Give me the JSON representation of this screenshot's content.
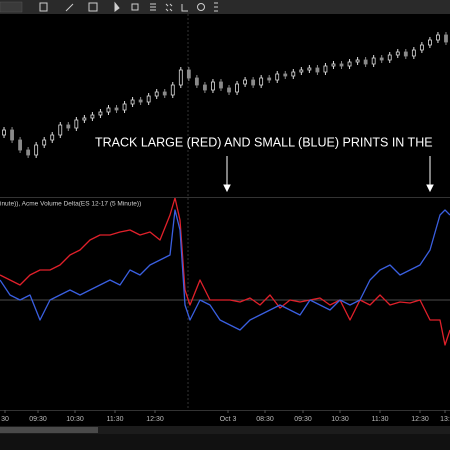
{
  "indicator_label": "inute)), Acme Volume Delta(ES 12-17 (5 Minute))",
  "time_axis": {
    "labels": [
      "30",
      "09:30",
      "10:30",
      "11:30",
      "12:30",
      "Oct 3",
      "08:30",
      "09:30",
      "10:30",
      "11:30",
      "12:30",
      "13:"
    ]
  },
  "chart_data": [
    {
      "type": "candlestick",
      "annotation": "TRACK LARGE (RED) AND SMALL (BLUE) PRINTS IN THE",
      "up_color": "#dddddd",
      "down_color": "#8a8a8a",
      "ylim": [
        0,
        200
      ],
      "open": [
        65,
        70,
        60,
        50,
        45,
        55,
        60,
        65,
        75,
        72,
        80,
        82,
        85,
        88,
        92,
        90,
        96,
        100,
        98,
        104,
        108,
        105,
        115,
        130,
        122,
        115,
        110,
        118,
        112,
        108,
        116,
        120,
        115,
        122,
        120,
        126,
        124,
        128,
        130,
        132,
        128,
        134,
        136,
        134,
        138,
        140,
        136,
        142,
        140,
        145,
        148,
        144,
        150,
        155,
        160,
        165
      ],
      "close": [
        70,
        60,
        50,
        45,
        55,
        60,
        65,
        75,
        72,
        80,
        82,
        85,
        88,
        92,
        90,
        96,
        100,
        98,
        104,
        108,
        105,
        115,
        130,
        122,
        115,
        110,
        118,
        112,
        108,
        116,
        120,
        115,
        122,
        120,
        126,
        124,
        128,
        130,
        132,
        128,
        134,
        136,
        134,
        138,
        140,
        136,
        142,
        140,
        145,
        148,
        144,
        150,
        155,
        160,
        165,
        158
      ],
      "high": [
        73,
        73,
        63,
        53,
        58,
        63,
        68,
        78,
        78,
        83,
        85,
        88,
        91,
        95,
        95,
        99,
        103,
        103,
        107,
        111,
        111,
        118,
        133,
        133,
        125,
        118,
        121,
        121,
        115,
        119,
        123,
        123,
        125,
        125,
        129,
        129,
        131,
        133,
        135,
        135,
        137,
        139,
        139,
        141,
        143,
        143,
        145,
        145,
        148,
        151,
        151,
        153,
        158,
        163,
        168,
        168
      ],
      "low": [
        62,
        57,
        47,
        42,
        42,
        52,
        57,
        62,
        69,
        69,
        77,
        79,
        82,
        85,
        87,
        87,
        93,
        95,
        95,
        101,
        102,
        102,
        112,
        119,
        112,
        107,
        107,
        109,
        105,
        105,
        113,
        112,
        112,
        117,
        117,
        121,
        121,
        125,
        127,
        125,
        125,
        131,
        131,
        131,
        135,
        133,
        133,
        137,
        137,
        142,
        141,
        141,
        147,
        152,
        157,
        155
      ]
    },
    {
      "type": "line",
      "xlim": [
        0,
        450
      ],
      "ylim": [
        -110,
        103
      ],
      "zero_line": true,
      "x": [
        0,
        10,
        20,
        30,
        40,
        50,
        60,
        70,
        80,
        90,
        100,
        110,
        120,
        130,
        140,
        150,
        160,
        170,
        175,
        180,
        185,
        190,
        200,
        210,
        220,
        230,
        240,
        250,
        260,
        270,
        280,
        290,
        300,
        310,
        320,
        330,
        340,
        350,
        360,
        370,
        380,
        390,
        400,
        410,
        420,
        430,
        440,
        445,
        450
      ],
      "series": [
        {
          "color": "#e0202a",
          "values": [
            25,
            20,
            15,
            25,
            30,
            30,
            35,
            45,
            50,
            60,
            65,
            65,
            68,
            70,
            65,
            68,
            60,
            85,
            102,
            80,
            10,
            -5,
            20,
            0,
            0,
            0,
            -2,
            2,
            -5,
            5,
            -8,
            0,
            -2,
            0,
            2,
            -5,
            0,
            -20,
            0,
            -5,
            5,
            -5,
            -2,
            -3,
            0,
            -20,
            -20,
            -45,
            -30
          ]
        },
        {
          "color": "#3a5fe0",
          "values": [
            20,
            5,
            0,
            5,
            -20,
            0,
            5,
            10,
            5,
            10,
            15,
            20,
            15,
            30,
            25,
            35,
            40,
            45,
            90,
            70,
            -5,
            -20,
            0,
            -5,
            -20,
            -25,
            -30,
            -20,
            -15,
            -10,
            -5,
            -10,
            -15,
            0,
            -5,
            -10,
            0,
            -5,
            0,
            20,
            30,
            35,
            25,
            30,
            35,
            50,
            85,
            90,
            85
          ]
        }
      ]
    }
  ]
}
